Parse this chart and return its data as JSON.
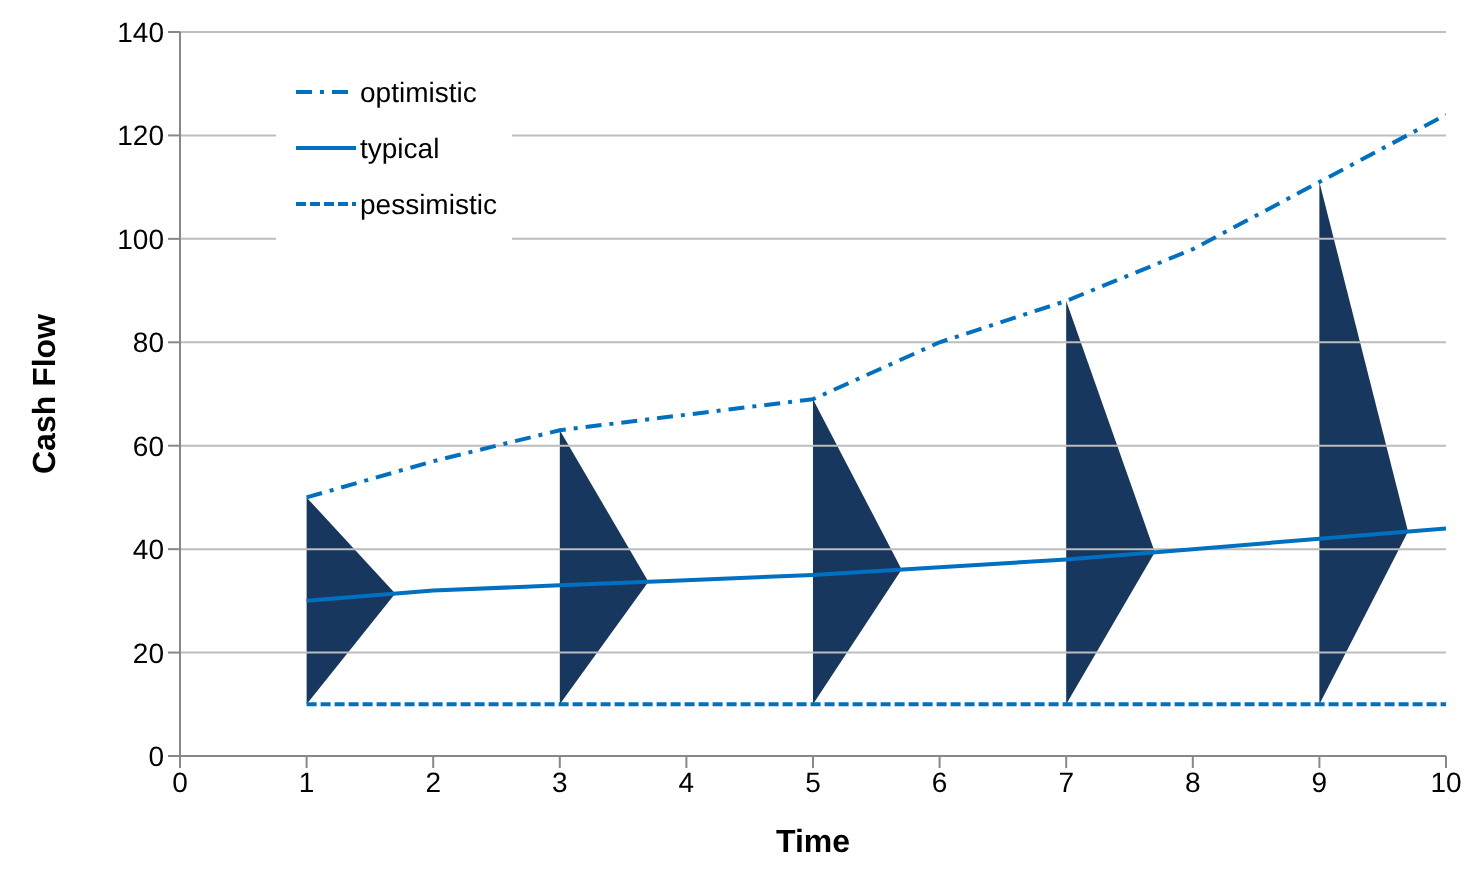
{
  "chart_data": {
    "type": "line",
    "xlabel": "Time",
    "ylabel": "Cash Flow",
    "x": [
      1,
      2,
      3,
      4,
      5,
      6,
      7,
      8,
      9,
      10
    ],
    "series": [
      {
        "name": "optimistic",
        "color": "#0070c0",
        "line_style": "dashdot",
        "values": [
          50,
          57,
          63,
          66,
          69,
          80,
          88,
          98,
          111,
          124
        ]
      },
      {
        "name": "typical",
        "color": "#0070c0",
        "line_style": "solid",
        "values": [
          30,
          32,
          33,
          34,
          35,
          36.5,
          38,
          40,
          42,
          44
        ]
      },
      {
        "name": "pessimistic",
        "color": "#0070c0",
        "line_style": "dashed",
        "values": [
          10,
          10,
          10,
          10,
          10,
          10,
          10,
          10,
          10,
          10
        ]
      }
    ],
    "xlim": [
      0,
      10
    ],
    "xticks": [
      0,
      1,
      2,
      3,
      4,
      5,
      6,
      7,
      8,
      9,
      10
    ],
    "ylim": [
      0,
      140
    ],
    "yticks": [
      0,
      20,
      40,
      60,
      80,
      100,
      120,
      140
    ],
    "grid": "y",
    "legend": "top left",
    "marker": "none"
  }
}
